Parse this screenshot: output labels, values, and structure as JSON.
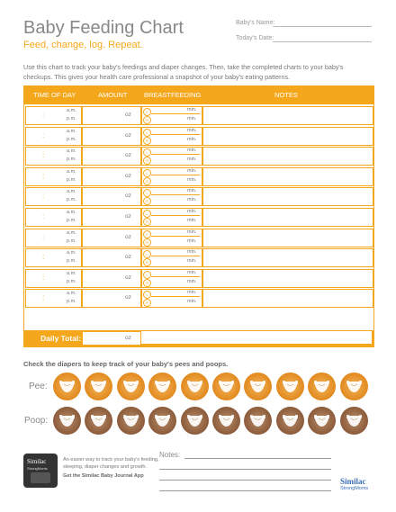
{
  "header": {
    "title": "Baby Feeding Chart",
    "subtitle": "Feed, change, log. Repeat.",
    "baby_name_label": "Baby's Name:",
    "date_label": "Today's Date:"
  },
  "intro": "Use this chart to track your baby's feedings and diaper changes. Then, take the completed charts to your baby's checkups. This gives your health care professional a snapshot of your baby's eating patterns.",
  "table": {
    "columns": [
      "TIME OF DAY",
      "AMOUNT",
      "BREASTFEEDING",
      "NOTES"
    ],
    "am": "a.m.",
    "pm": "p.m.",
    "oz": "oz",
    "min": "min.",
    "left_side": "L",
    "right_side": "R",
    "total_label": "Daily Total:",
    "total_unit": "oz"
  },
  "diapers": {
    "heading": "Check the diapers to keep track of your baby's pees and poops.",
    "pee_label": "Pee:",
    "poop_label": "Poop:",
    "count": 10
  },
  "footer": {
    "app_name": "Similac",
    "app_sub": "StrongMoms",
    "app_text": "An easier way to track your baby's feeding, sleeping, diaper changes and growth.",
    "app_cta": "Get the Similac Baby Journal App",
    "notes_label": "Notes:",
    "brand": "Similac",
    "brand_sub": "StrongMoms"
  },
  "colors": {
    "accent": "#f5a71c",
    "pee": "#e28a1f",
    "poop": "#8c5b3b"
  }
}
